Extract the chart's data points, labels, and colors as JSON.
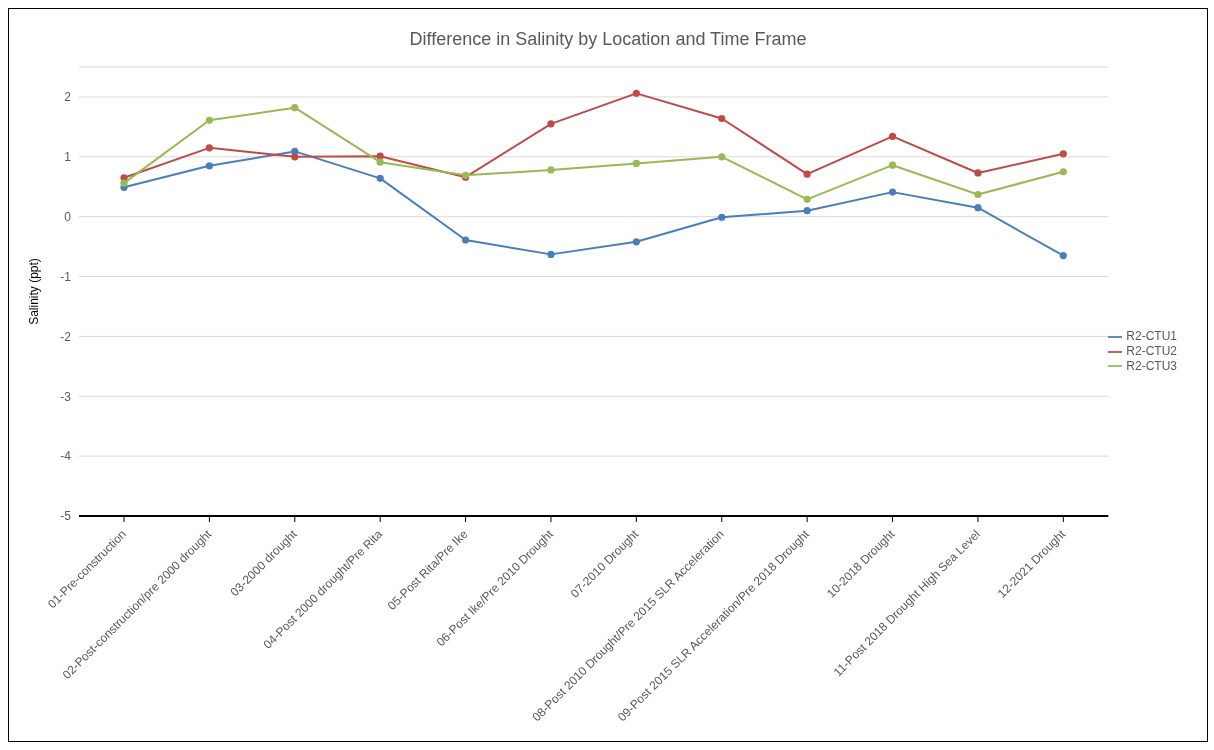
{
  "chart_data": {
    "type": "line",
    "title": "Difference in Salinity by Location and Time Frame",
    "ylabel": "Salinity (ppt)",
    "categories": [
      "01-Pre-construction",
      "02-Post-construction/pre 2000 drought",
      "03-2000 drought",
      "04-Post 2000 drought/Pre Rita",
      "05-Post Rita/Pre Ike",
      "06-Post Ike/Pre 2010 Drought",
      "07-2010 Drought",
      "08-Post 2010 Drought/Pre 2015 SLR Acceleration",
      "09-Post 2015 SLR Acceleration/Pre 2018 Drought",
      "10-2018 Drought",
      "11-Post 2018 Drought High Sea Level",
      "12-2021 Drought"
    ],
    "series": [
      {
        "name": "R2-CTU1",
        "color": "#4a7ebb",
        "values": [
          0.49,
          0.85,
          1.09,
          0.64,
          -0.39,
          -0.63,
          -0.42,
          -0.01,
          0.1,
          0.41,
          0.15,
          -0.65
        ]
      },
      {
        "name": "R2-CTU2",
        "color": "#be4b48",
        "values": [
          0.65,
          1.15,
          1.0,
          1.01,
          0.66,
          1.55,
          2.06,
          1.64,
          0.71,
          1.34,
          0.73,
          1.05
        ]
      },
      {
        "name": "R2-CTU3",
        "color": "#98b954",
        "values": [
          0.56,
          1.61,
          1.82,
          0.91,
          0.69,
          0.78,
          0.89,
          1.0,
          0.29,
          0.86,
          0.37,
          0.75
        ]
      }
    ],
    "ylim": [
      -5,
      2.5
    ],
    "yticks": [
      -5,
      -4,
      -3,
      -2,
      -1,
      0,
      1,
      2
    ],
    "grid": "y",
    "legend": "right",
    "marker": "circle",
    "line_style": "solid"
  }
}
